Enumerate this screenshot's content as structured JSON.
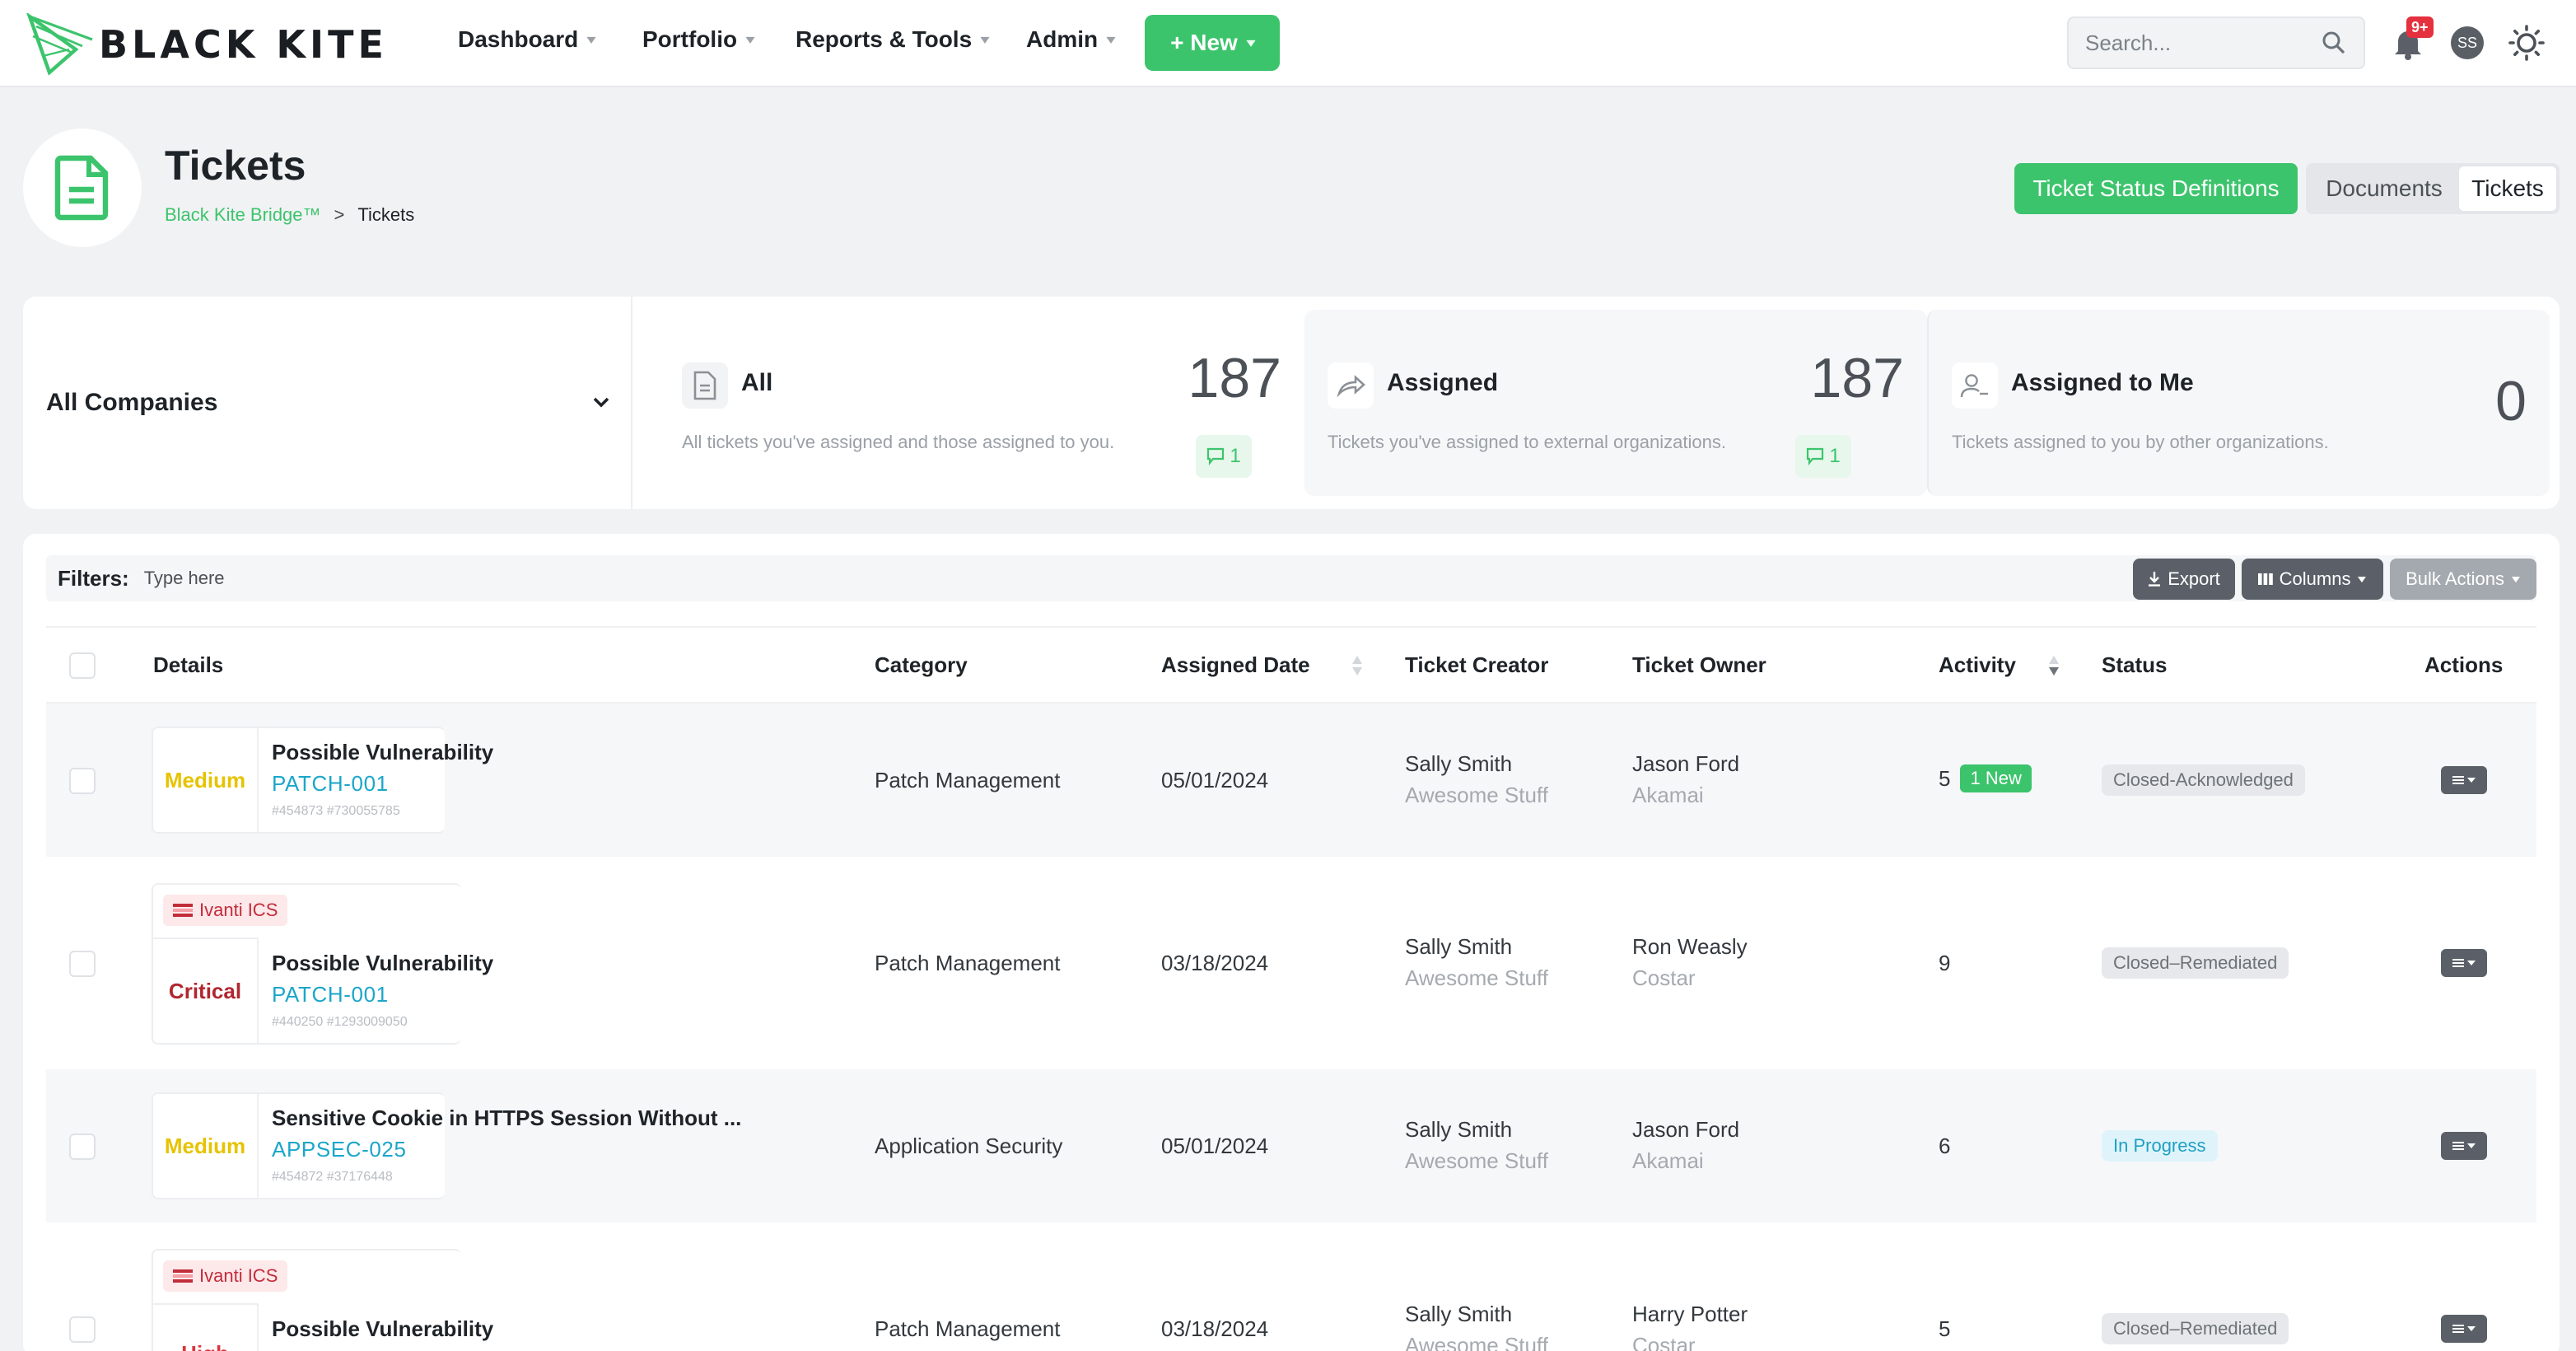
{
  "brand": {
    "name": "BLACK KITE",
    "accent": "#3cc46c"
  },
  "nav": {
    "items": [
      "Dashboard",
      "Portfolio",
      "Reports & Tools",
      "Admin"
    ],
    "new_label": "+ New",
    "search_placeholder": "Search...",
    "notifications_badge": "9+",
    "avatar_initials": "SS"
  },
  "header": {
    "title": "Tickets",
    "breadcrumb": {
      "parent": "Black Kite Bridge™",
      "separator": ">",
      "current": "Tickets"
    },
    "status_definitions_label": "Ticket Status Definitions",
    "segments": [
      "Documents",
      "Tickets"
    ],
    "active_segment": "Tickets"
  },
  "stats": {
    "company_select": "All Companies",
    "cards": [
      {
        "label": "All",
        "desc": "All tickets you've assigned and those assigned to you.",
        "count": "187",
        "comments": "1",
        "icon": "document-icon"
      },
      {
        "label": "Assigned",
        "desc": "Tickets you've assigned to external organizations.",
        "count": "187",
        "comments": "1",
        "icon": "share-arrow-icon"
      },
      {
        "label": "Assigned to Me",
        "desc": "Tickets assigned to you by other organizations.",
        "count": "0",
        "icon": "user-icon"
      }
    ]
  },
  "table": {
    "filters_label": "Filters:",
    "filters_placeholder": "Type here",
    "export_label": "Export",
    "columns_label": "Columns",
    "bulk_label": "Bulk Actions",
    "headers": [
      "Details",
      "Category",
      "Assigned Date",
      "Ticket Creator",
      "Ticket Owner",
      "Activity",
      "Status",
      "Actions"
    ],
    "rows": [
      {
        "severity": "Medium",
        "tag": "",
        "title": "Possible Vulnerability",
        "code": "PATCH-001",
        "ids": "#454873 #730055785",
        "category": "Patch Management",
        "date": "05/01/2024",
        "creator": "Sally Smith",
        "creator_org": "Awesome Stuff",
        "owner": "Jason Ford",
        "owner_org": "Akamai",
        "activity": "5",
        "activity_new": "1 New",
        "status": "Closed-Acknowledged",
        "status_color": "#e6e8eb"
      },
      {
        "severity": "Critical",
        "tag": "Ivanti ICS",
        "title": "Possible Vulnerability",
        "code": "PATCH-001",
        "ids": "#440250 #1293009050",
        "category": "Patch Management",
        "date": "03/18/2024",
        "creator": "Sally Smith",
        "creator_org": "Awesome Stuff",
        "owner": "Ron Weasly",
        "owner_org": "Costar",
        "activity": "9",
        "activity_new": "",
        "status": "Closed–Remediated",
        "status_color": "#e6e8eb"
      },
      {
        "severity": "Medium",
        "tag": "",
        "title": "Sensitive Cookie in HTTPS Session Without ...",
        "code": "APPSEC-025",
        "ids": "#454872 #37176448",
        "category": "Application Security",
        "date": "05/01/2024",
        "creator": "Sally Smith",
        "creator_org": "Awesome Stuff",
        "owner": "Jason Ford",
        "owner_org": "Akamai",
        "activity": "6",
        "activity_new": "",
        "status": "In Progress",
        "status_color": "#dff4fa"
      },
      {
        "severity": "High",
        "tag": "Ivanti ICS",
        "title": "Possible Vulnerability",
        "code": "",
        "ids": "",
        "category": "Patch Management",
        "date": "03/18/2024",
        "creator": "Sally Smith",
        "creator_org": "Awesome Stuff",
        "owner": "Harry Potter",
        "owner_org": "Costar",
        "activity": "5",
        "activity_new": "",
        "status": "Closed–Remediated",
        "status_color": "#e6e8eb"
      }
    ]
  }
}
